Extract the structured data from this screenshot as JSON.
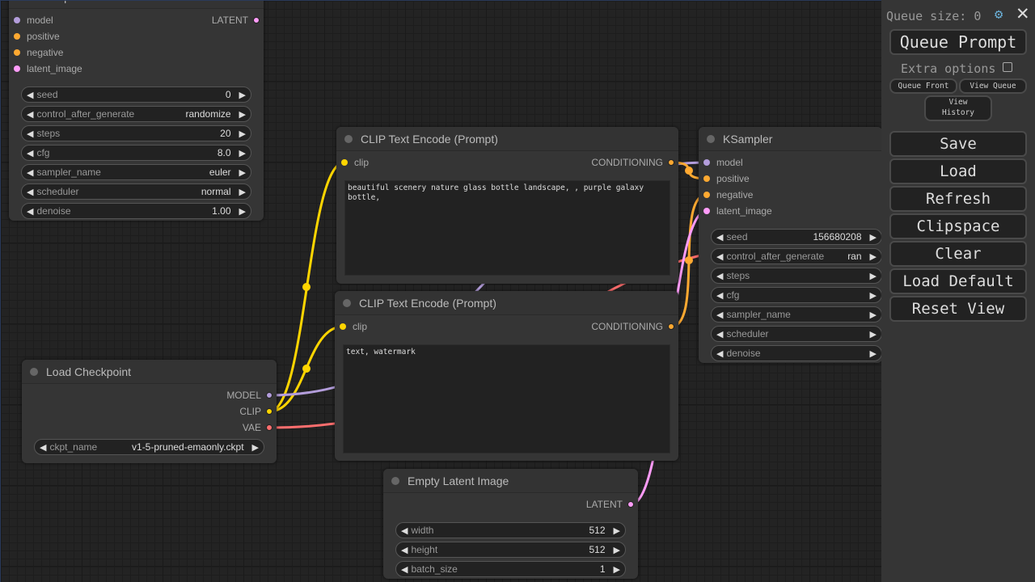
{
  "colors": {
    "model": "#b39ddb",
    "conditioning": "#ffa931",
    "latent": "#ff9cf9",
    "clip": "#ffd500",
    "vae": "#ff6e6e"
  },
  "nodes": [
    {
      "id": "ksampler_top",
      "title": "KSampler",
      "inputs": [
        {
          "name": "model",
          "type": "model"
        },
        {
          "name": "positive",
          "type": "conditioning"
        },
        {
          "name": "negative",
          "type": "conditioning"
        },
        {
          "name": "latent_image",
          "type": "latent"
        }
      ],
      "outputs": [
        {
          "name": "LATENT",
          "type": "latent"
        }
      ],
      "widgets": [
        {
          "label": "seed",
          "value": "0"
        },
        {
          "label": "control_after_generate",
          "value": "randomize"
        },
        {
          "label": "steps",
          "value": "20"
        },
        {
          "label": "cfg",
          "value": "8.0"
        },
        {
          "label": "sampler_name",
          "value": "euler"
        },
        {
          "label": "scheduler",
          "value": "normal"
        },
        {
          "label": "denoise",
          "value": "1.00"
        }
      ]
    },
    {
      "id": "clip_pos",
      "title": "CLIP Text Encode (Prompt)",
      "inputs": [
        {
          "name": "clip",
          "type": "clip"
        }
      ],
      "outputs": [
        {
          "name": "CONDITIONING",
          "type": "conditioning"
        }
      ],
      "text": "beautiful scenery nature glass bottle landscape, , purple galaxy bottle,",
      "widgets": []
    },
    {
      "id": "clip_neg",
      "title": "CLIP Text Encode (Prompt)",
      "inputs": [
        {
          "name": "clip",
          "type": "clip"
        }
      ],
      "outputs": [
        {
          "name": "CONDITIONING",
          "type": "conditioning"
        }
      ],
      "text": "text, watermark",
      "widgets": []
    },
    {
      "id": "ckpt",
      "title": "Load Checkpoint",
      "inputs": [],
      "outputs": [
        {
          "name": "MODEL",
          "type": "model"
        },
        {
          "name": "CLIP",
          "type": "clip"
        },
        {
          "name": "VAE",
          "type": "vae"
        }
      ],
      "widgets": [
        {
          "label": "ckpt_name",
          "value": "v1-5-pruned-emaonly.ckpt"
        }
      ]
    },
    {
      "id": "latent",
      "title": "Empty Latent Image",
      "inputs": [],
      "outputs": [
        {
          "name": "LATENT",
          "type": "latent"
        }
      ],
      "widgets": [
        {
          "label": "width",
          "value": "512"
        },
        {
          "label": "height",
          "value": "512"
        },
        {
          "label": "batch_size",
          "value": "1"
        }
      ]
    },
    {
      "id": "ksampler",
      "title": "KSampler",
      "inputs": [
        {
          "name": "model",
          "type": "model"
        },
        {
          "name": "positive",
          "type": "conditioning"
        },
        {
          "name": "negative",
          "type": "conditioning"
        },
        {
          "name": "latent_image",
          "type": "latent"
        }
      ],
      "outputs": [],
      "widgets": [
        {
          "label": "seed",
          "value": "156680208"
        },
        {
          "label": "control_after_generate",
          "value": "ran"
        },
        {
          "label": "steps",
          "value": ""
        },
        {
          "label": "cfg",
          "value": ""
        },
        {
          "label": "sampler_name",
          "value": ""
        },
        {
          "label": "scheduler",
          "value": ""
        },
        {
          "label": "denoise",
          "value": ""
        }
      ]
    }
  ],
  "panel": {
    "queue_size": "Queue size: 0",
    "settings_icon": "gear-icon",
    "close_icon": "close-icon",
    "queue_prompt": "Queue Prompt",
    "extra_options": "Extra options",
    "queue_front": "Queue Front",
    "view_queue": "View Queue",
    "view_history": "View History",
    "buttons": [
      "Save",
      "Load",
      "Refresh",
      "Clipspace",
      "Clear",
      "Load Default",
      "Reset View"
    ]
  }
}
